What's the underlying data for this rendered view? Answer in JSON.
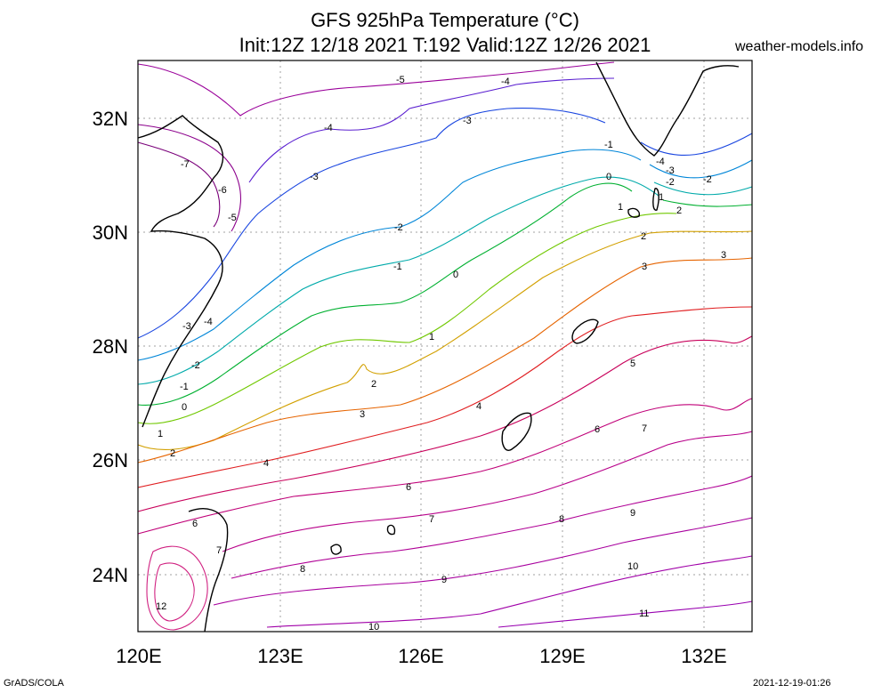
{
  "title_line1": "GFS 925hPa Temperature (°C)",
  "title_line2": "Init:12Z 12/18 2021 T:192 Valid:12Z 12/26 2021",
  "site": "weather-models.info",
  "credit": "GrADS/COLA",
  "timestamp": "2021-12-19-01:26",
  "lat_labels": [
    "32N",
    "30N",
    "28N",
    "26N",
    "24N"
  ],
  "lon_labels": [
    "120E",
    "123E",
    "126E",
    "129E",
    "132E"
  ],
  "contour_labels": [
    "-7",
    "-6",
    "-5",
    "-5",
    "-4",
    "-4",
    "-4",
    "-4",
    "-3",
    "-3",
    "-3",
    "-3",
    "-2",
    "-2",
    "-2",
    "-2",
    "-1",
    "-1",
    "-1",
    "0",
    "0",
    "0",
    "1",
    "1",
    "1",
    "1",
    "2",
    "2",
    "2",
    "2",
    "3",
    "3",
    "3",
    "4",
    "4",
    "5",
    "6",
    "6",
    "6",
    "7",
    "7",
    "7",
    "8",
    "8",
    "9",
    "9",
    "10",
    "10",
    "11",
    "12"
  ],
  "colors": {
    "coast": "#000000",
    "grid": "#a0a0a0",
    "t_-7": "#7a007a",
    "t_-6": "#8c008c",
    "t_-5": "#9a009a",
    "t_-4": "#5a1fd0",
    "t_-3": "#1a46e0",
    "t_-2": "#0086d8",
    "t_-1": "#00aaaa",
    "t_0": "#00b030",
    "t_1": "#70c800",
    "t_2": "#d2a000",
    "t_3": "#e66400",
    "t_4": "#e01e20",
    "t_5": "#c8005a",
    "t_6": "#c00078",
    "t_7": "#b8008a",
    "t_8": "#b00096",
    "t_9": "#a8009e",
    "t_10": "#a000a8",
    "t_11": "#9800b0",
    "t_12": "#d02080"
  }
}
